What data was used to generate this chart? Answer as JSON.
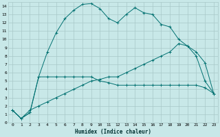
{
  "xlabel": "Humidex (Indice chaleur)",
  "bg_color": "#c8e8e8",
  "grid_color": "#a8c8c8",
  "line_color": "#007070",
  "xlim": [
    -0.5,
    23.5
  ],
  "ylim": [
    0,
    14.5
  ],
  "xticks": [
    0,
    1,
    2,
    3,
    4,
    5,
    6,
    7,
    8,
    9,
    10,
    11,
    12,
    13,
    14,
    15,
    16,
    17,
    18,
    19,
    20,
    21,
    22,
    23
  ],
  "yticks": [
    0,
    1,
    2,
    3,
    4,
    5,
    6,
    7,
    8,
    9,
    10,
    11,
    12,
    13,
    14
  ],
  "line1_x": [
    0,
    1,
    2,
    3,
    4,
    5,
    6,
    7,
    8,
    9,
    10,
    11,
    12,
    13,
    14,
    15,
    16,
    17,
    18,
    19,
    20,
    21,
    22,
    23
  ],
  "line1_y": [
    1.5,
    0.5,
    1.2,
    5.5,
    8.5,
    10.8,
    12.5,
    13.5,
    14.2,
    14.3,
    13.7,
    12.5,
    12.0,
    13.0,
    13.8,
    13.2,
    13.0,
    11.8,
    11.5,
    10.0,
    9.2,
    8.0,
    5.0,
    3.5
  ],
  "line2_x": [
    0,
    1,
    2,
    3,
    4,
    5,
    6,
    7,
    8,
    9,
    10,
    11,
    12,
    13,
    14,
    15,
    16,
    17,
    18,
    19,
    20,
    21,
    22,
    23
  ],
  "line2_y": [
    1.5,
    0.5,
    1.5,
    2.0,
    2.5,
    3.0,
    3.5,
    4.0,
    4.5,
    5.0,
    5.2,
    5.5,
    5.5,
    6.0,
    6.5,
    7.0,
    7.5,
    8.0,
    8.5,
    9.5,
    9.2,
    8.5,
    7.2,
    3.5
  ],
  "line3_x": [
    0,
    1,
    2,
    3,
    4,
    5,
    6,
    7,
    8,
    9,
    10,
    11,
    12,
    13,
    14,
    15,
    16,
    17,
    18,
    19,
    20,
    21,
    22,
    23
  ],
  "line3_y": [
    1.5,
    0.5,
    1.2,
    5.5,
    5.5,
    5.5,
    5.5,
    5.5,
    5.5,
    5.5,
    5.0,
    4.8,
    4.5,
    4.5,
    4.5,
    4.5,
    4.5,
    4.5,
    4.5,
    4.5,
    4.5,
    4.5,
    4.2,
    3.5
  ],
  "tick_fontsize": 4.5,
  "xlabel_fontsize": 5.5
}
